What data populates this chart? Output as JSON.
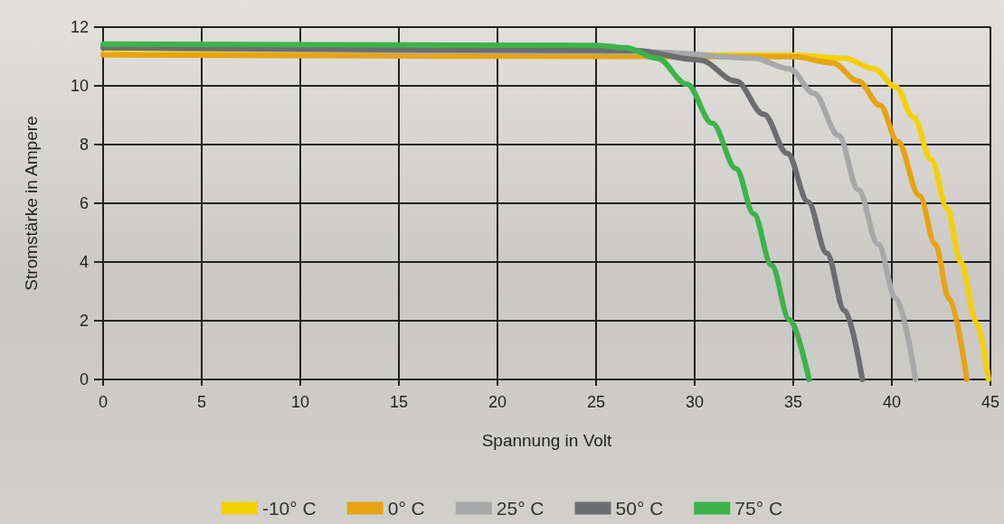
{
  "chart_data": {
    "type": "line",
    "xlabel": "Spannung in Volt",
    "ylabel": "Stromstärke in Ampere",
    "xlim": [
      0,
      45
    ],
    "xticks": [
      0,
      5,
      10,
      15,
      20,
      25,
      30,
      35,
      40,
      45
    ],
    "ylim": [
      0,
      12
    ],
    "yticks": [
      0,
      2,
      4,
      6,
      8,
      10,
      12
    ],
    "grid": true,
    "legend": "bottom",
    "marker": "none",
    "line_style": "solid",
    "series": [
      {
        "name": "-10° C",
        "color": "#f5d000",
        "x": [
          0,
          35,
          37.6,
          39.1,
          40.2,
          41.1,
          42.0,
          42.8,
          43.5,
          44.3,
          44.9
        ],
        "values": [
          11.1,
          11.05,
          10.94,
          10.58,
          9.96,
          8.93,
          7.49,
          5.84,
          3.99,
          1.93,
          0
        ]
      },
      {
        "name": "0° C",
        "color": "#e6a412",
        "x": [
          0,
          35,
          37.0,
          38.3,
          39.4,
          40.3,
          41.4,
          42.2,
          42.9,
          43.8
        ],
        "values": [
          11.05,
          10.99,
          10.78,
          10.16,
          9.34,
          8.1,
          6.26,
          4.61,
          2.76,
          0
        ]
      },
      {
        "name": "25° C",
        "color": "#a7a8aa",
        "x": [
          0,
          28,
          33.0,
          34.8,
          36.05,
          37.3,
          38.3,
          39.3,
          40.2,
          41.2
        ],
        "values": [
          11.3,
          11.15,
          10.94,
          10.58,
          9.75,
          8.31,
          6.46,
          4.61,
          2.76,
          0
        ]
      },
      {
        "name": "50° C",
        "color": "#6b6d70",
        "x": [
          0,
          27,
          30.25,
          32.1,
          33.5,
          34.7,
          35.75,
          36.7,
          37.6,
          38.5
        ],
        "values": [
          11.3,
          11.2,
          10.88,
          10.16,
          9.03,
          7.7,
          6.05,
          4.3,
          2.35,
          0
        ]
      },
      {
        "name": "75° C",
        "color": "#3db34a",
        "x": [
          0,
          25,
          26.5,
          28.1,
          29.6,
          30.9,
          32.1,
          33.0,
          33.9,
          34.8,
          35.8
        ],
        "values": [
          11.42,
          11.38,
          11.3,
          10.94,
          10.06,
          8.72,
          7.18,
          5.64,
          3.89,
          2.04,
          0
        ]
      }
    ]
  }
}
